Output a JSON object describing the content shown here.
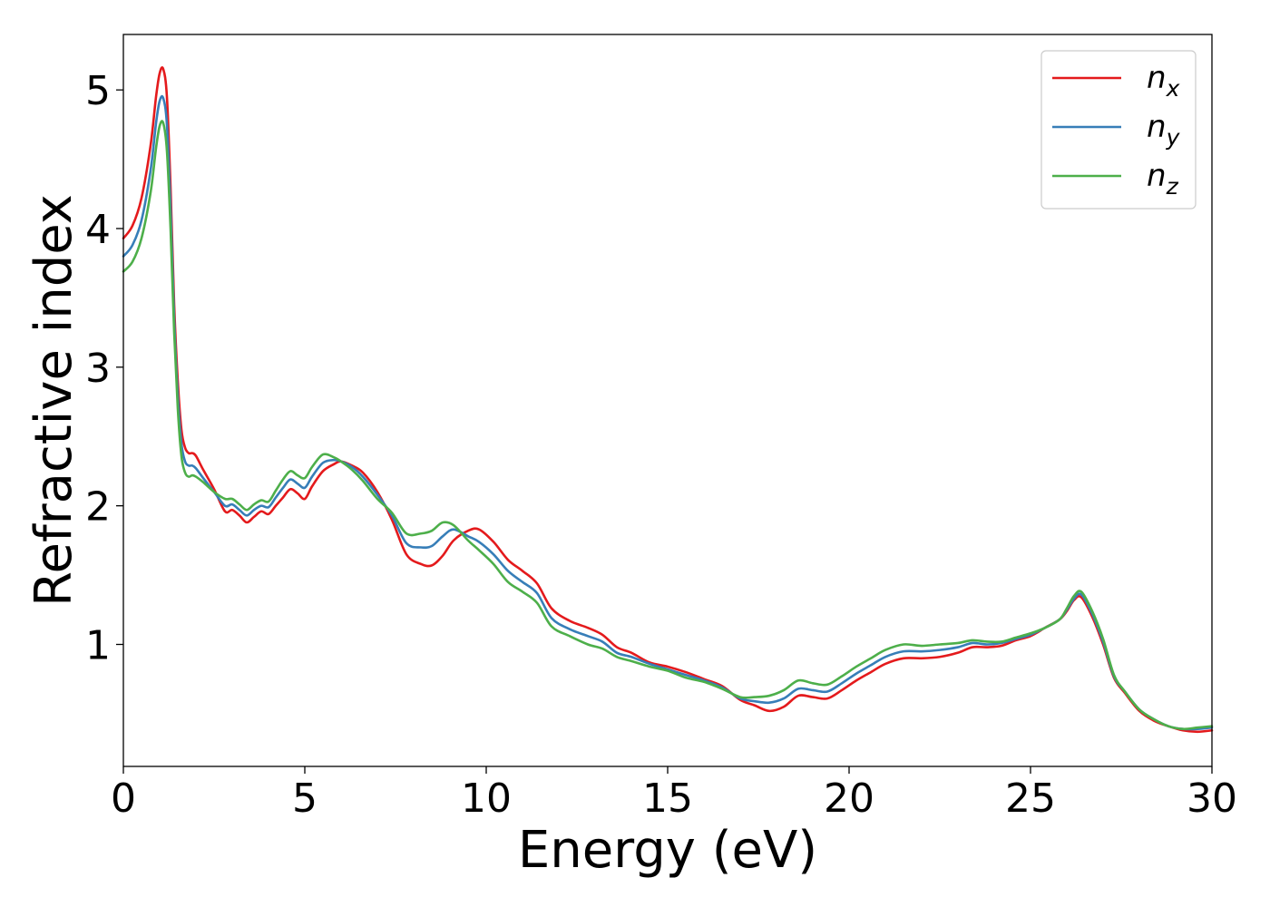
{
  "chart_data": {
    "type": "line",
    "xlabel": "Energy (eV)",
    "ylabel": "Refractive index",
    "xlim": [
      0,
      30
    ],
    "ylim": [
      0.12,
      5.4
    ],
    "xticks": [
      0,
      5,
      10,
      15,
      20,
      25,
      30
    ],
    "yticks": [
      1,
      2,
      3,
      4,
      5
    ],
    "xtick_labels": [
      "0",
      "5",
      "10",
      "15",
      "20",
      "25",
      "30"
    ],
    "ytick_labels": [
      "1",
      "2",
      "3",
      "4",
      "5"
    ],
    "grid": false,
    "legend_position": "top-right",
    "x": [
      0,
      0.25,
      0.5,
      0.75,
      0.9,
      1.0,
      1.1,
      1.2,
      1.3,
      1.4,
      1.5,
      1.6,
      1.7,
      1.8,
      1.9,
      2.0,
      2.2,
      2.5,
      2.8,
      3.0,
      3.2,
      3.4,
      3.6,
      3.8,
      4.0,
      4.2,
      4.4,
      4.6,
      4.8,
      5.0,
      5.2,
      5.5,
      5.8,
      6.0,
      6.3,
      6.6,
      7.0,
      7.4,
      7.8,
      8.2,
      8.5,
      8.8,
      9.1,
      9.5,
      9.8,
      10.2,
      10.6,
      11.0,
      11.4,
      11.8,
      12.3,
      12.8,
      13.2,
      13.6,
      14.0,
      14.5,
      15.0,
      15.5,
      16.0,
      16.5,
      17.0,
      17.4,
      17.8,
      18.2,
      18.6,
      19.0,
      19.4,
      19.8,
      20.2,
      20.6,
      21.0,
      21.5,
      22.0,
      22.5,
      23.0,
      23.4,
      23.8,
      24.2,
      24.6,
      25.0,
      25.4,
      25.8,
      26.0,
      26.2,
      26.4,
      26.7,
      27.0,
      27.3,
      27.6,
      28.0,
      28.4,
      28.8,
      29.2,
      29.6,
      30.0
    ],
    "series": [
      {
        "name": "n_x",
        "color": "#e41a1c",
        "y": [
          3.93,
          4.02,
          4.22,
          4.6,
          4.95,
          5.12,
          5.15,
          4.95,
          4.3,
          3.45,
          2.9,
          2.55,
          2.42,
          2.38,
          2.38,
          2.36,
          2.26,
          2.12,
          1.96,
          1.97,
          1.93,
          1.88,
          1.92,
          1.96,
          1.94,
          2.0,
          2.06,
          2.12,
          2.09,
          2.05,
          2.14,
          2.25,
          2.3,
          2.32,
          2.29,
          2.24,
          2.1,
          1.9,
          1.65,
          1.58,
          1.57,
          1.64,
          1.75,
          1.82,
          1.83,
          1.74,
          1.61,
          1.53,
          1.44,
          1.26,
          1.17,
          1.12,
          1.07,
          0.98,
          0.94,
          0.87,
          0.84,
          0.8,
          0.75,
          0.7,
          0.6,
          0.56,
          0.52,
          0.55,
          0.63,
          0.62,
          0.61,
          0.67,
          0.74,
          0.8,
          0.86,
          0.9,
          0.9,
          0.91,
          0.94,
          0.98,
          0.98,
          0.99,
          1.03,
          1.06,
          1.12,
          1.18,
          1.24,
          1.32,
          1.34,
          1.2,
          1.0,
          0.76,
          0.65,
          0.52,
          0.45,
          0.41,
          0.38,
          0.37,
          0.38
        ]
      },
      {
        "name": "n_y",
        "color": "#377eb8",
        "y": [
          3.8,
          3.88,
          4.06,
          4.42,
          4.76,
          4.92,
          4.94,
          4.75,
          4.15,
          3.35,
          2.8,
          2.45,
          2.32,
          2.29,
          2.29,
          2.27,
          2.2,
          2.1,
          2.0,
          2.01,
          1.97,
          1.93,
          1.97,
          2.0,
          1.99,
          2.06,
          2.13,
          2.19,
          2.16,
          2.13,
          2.21,
          2.31,
          2.33,
          2.32,
          2.28,
          2.21,
          2.08,
          1.93,
          1.73,
          1.7,
          1.71,
          1.78,
          1.83,
          1.78,
          1.74,
          1.65,
          1.53,
          1.45,
          1.37,
          1.19,
          1.11,
          1.06,
          1.02,
          0.94,
          0.91,
          0.86,
          0.82,
          0.78,
          0.74,
          0.69,
          0.61,
          0.59,
          0.58,
          0.61,
          0.68,
          0.67,
          0.66,
          0.72,
          0.79,
          0.85,
          0.91,
          0.95,
          0.95,
          0.96,
          0.98,
          1.01,
          1.0,
          1.01,
          1.04,
          1.07,
          1.12,
          1.18,
          1.25,
          1.33,
          1.36,
          1.22,
          1.02,
          0.77,
          0.66,
          0.53,
          0.46,
          0.41,
          0.39,
          0.39,
          0.4
        ]
      },
      {
        "name": "n_z",
        "color": "#4daf4a",
        "y": [
          3.69,
          3.76,
          3.93,
          4.26,
          4.58,
          4.74,
          4.76,
          4.56,
          4.0,
          3.25,
          2.7,
          2.36,
          2.24,
          2.21,
          2.22,
          2.21,
          2.17,
          2.1,
          2.05,
          2.05,
          2.01,
          1.97,
          2.01,
          2.04,
          2.03,
          2.11,
          2.19,
          2.25,
          2.22,
          2.2,
          2.28,
          2.37,
          2.35,
          2.32,
          2.26,
          2.18,
          2.05,
          1.95,
          1.8,
          1.8,
          1.82,
          1.88,
          1.86,
          1.75,
          1.68,
          1.58,
          1.45,
          1.38,
          1.3,
          1.13,
          1.06,
          1.0,
          0.97,
          0.91,
          0.88,
          0.84,
          0.81,
          0.76,
          0.73,
          0.68,
          0.62,
          0.62,
          0.63,
          0.67,
          0.74,
          0.72,
          0.71,
          0.77,
          0.84,
          0.9,
          0.96,
          1.0,
          0.99,
          1.0,
          1.01,
          1.03,
          1.02,
          1.02,
          1.05,
          1.08,
          1.12,
          1.18,
          1.26,
          1.35,
          1.38,
          1.24,
          1.04,
          0.78,
          0.66,
          0.53,
          0.46,
          0.41,
          0.39,
          0.4,
          0.41
        ]
      }
    ],
    "legend": [
      {
        "base": "n",
        "sub": "x",
        "color": "#e41a1c"
      },
      {
        "base": "n",
        "sub": "y",
        "color": "#377eb8"
      },
      {
        "base": "n",
        "sub": "z",
        "color": "#4daf4a"
      }
    ]
  }
}
